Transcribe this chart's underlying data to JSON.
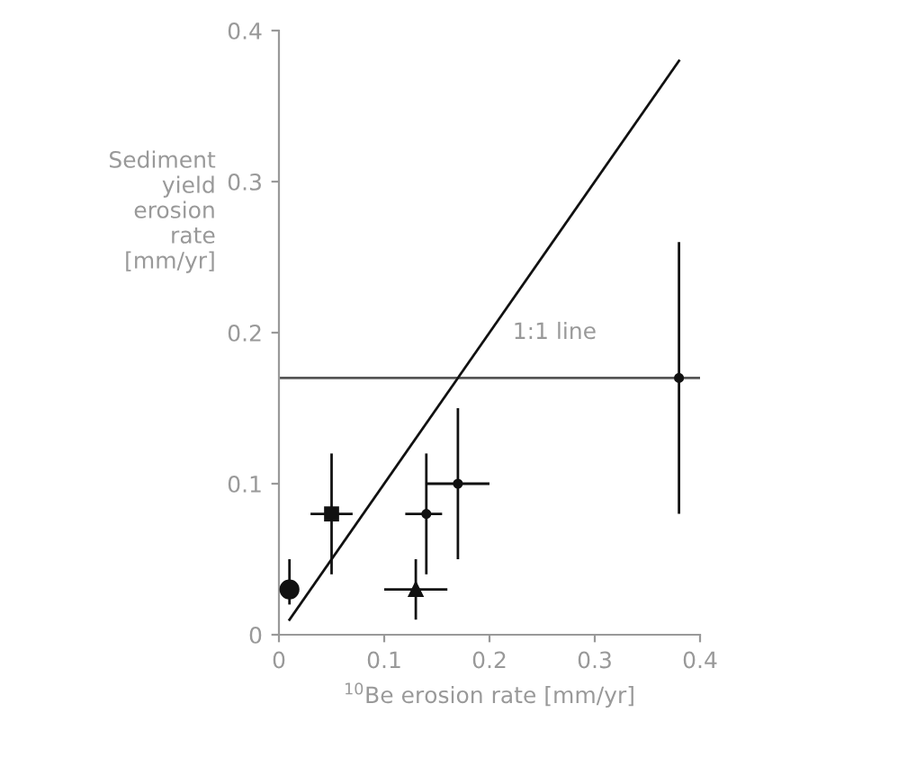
{
  "chart_data": {
    "type": "scatter",
    "xlabel": "$^{10}$Be erosion rate [mm/yr]",
    "ylabel": "Sediment\nyield\nerosion\nrate\n[mm/yr]",
    "xlim": [
      0,
      0.4
    ],
    "ylim": [
      0,
      0.4
    ],
    "xticks": [
      0,
      0.1,
      0.2,
      0.3,
      0.4
    ],
    "yticks": [
      0,
      0.1,
      0.2,
      0.3,
      0.4
    ],
    "grid": false,
    "legend": false,
    "series": [
      {
        "marker": "circle",
        "color": "#111111",
        "x": [
          0.01
        ],
        "values": [
          0.03
        ],
        "errors": [
          [
            0.02,
            0.05
          ]
        ]
      },
      {
        "marker": "square",
        "color": "#111111",
        "x": [
          0.05
        ],
        "values": [
          0.08
        ],
        "errors": [
          [
            0.04,
            0.12
          ]
        ],
        "xerrors": [
          [
            0.03,
            0.07
          ]
        ]
      },
      {
        "marker": "triangle",
        "color": "#111111",
        "x": [
          0.13
        ],
        "values": [
          0.03
        ],
        "errors": [
          [
            0.01,
            0.05
          ]
        ],
        "xerrors": [
          [
            0.1,
            0.16
          ]
        ]
      },
      {
        "marker": "circle",
        "color": "#111111",
        "x": [
          0.14,
          0.17,
          0.38
        ],
        "values": [
          0.08,
          0.1,
          0.17
        ],
        "errors": [
          [
            0.04,
            0.12
          ],
          [
            0.05,
            0.15
          ],
          [
            0.08,
            0.26
          ]
        ],
        "xerrors": [
          [
            0.12,
            0.155
          ],
          [
            0.14,
            0.2
          ],
          null
        ]
      },
      {
        "type": "line",
        "marker": "none",
        "color": "#111111",
        "x": [
          0.01,
          0.38
        ],
        "values": [
          0.01,
          0.38
        ]
      }
    ],
    "ref_lines": [
      {
        "axis": "y",
        "value": 0.17,
        "color": "#555555"
      }
    ],
    "annotations": [
      "1:1 line"
    ]
  }
}
